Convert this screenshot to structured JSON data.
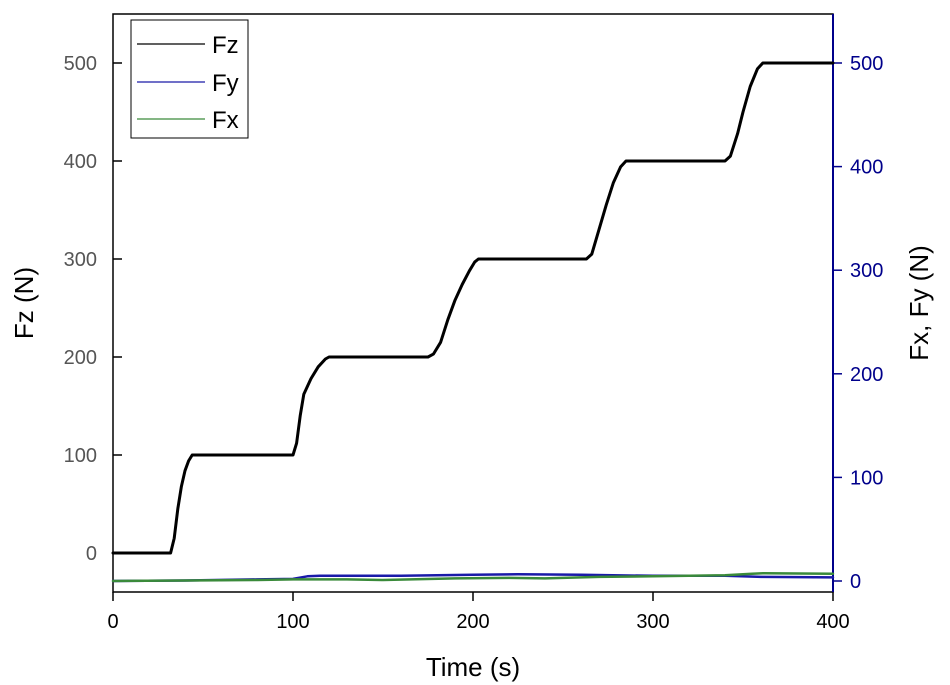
{
  "chart_data": {
    "type": "line",
    "title": "",
    "xlabel": "Time (s)",
    "ylabel_left": "Fz (N)",
    "ylabel_right": "Fx, Fy (N)",
    "xlim": [
      0,
      400
    ],
    "ylim_left": [
      -40,
      550
    ],
    "ylim_right": [
      -10,
      550
    ],
    "x_ticks": [
      0,
      100,
      200,
      300,
      400
    ],
    "y_left_ticks": [
      0,
      100,
      200,
      300,
      400,
      500
    ],
    "y_right_ticks": [
      0,
      100,
      200,
      300,
      400,
      500
    ],
    "grid": false,
    "legend_position": "top-left",
    "colors": {
      "left_axis": "#555555",
      "right_axis": "#00008b",
      "frame": "#000000"
    },
    "series": [
      {
        "name": "Fz",
        "axis": "left",
        "color": "#000000",
        "points": [
          [
            0,
            0
          ],
          [
            32,
            0
          ],
          [
            34,
            15
          ],
          [
            36,
            45
          ],
          [
            38,
            68
          ],
          [
            40,
            84
          ],
          [
            42,
            94
          ],
          [
            44,
            100
          ],
          [
            100,
            100
          ],
          [
            102,
            112
          ],
          [
            104,
            140
          ],
          [
            106,
            162
          ],
          [
            110,
            178
          ],
          [
            114,
            190
          ],
          [
            118,
            198
          ],
          [
            120,
            200
          ],
          [
            175,
            200
          ],
          [
            178,
            203
          ],
          [
            182,
            215
          ],
          [
            186,
            238
          ],
          [
            190,
            258
          ],
          [
            194,
            274
          ],
          [
            198,
            288
          ],
          [
            201,
            297
          ],
          [
            203,
            300
          ],
          [
            263,
            300
          ],
          [
            266,
            305
          ],
          [
            270,
            330
          ],
          [
            274,
            355
          ],
          [
            278,
            378
          ],
          [
            282,
            394
          ],
          [
            285,
            400
          ],
          [
            340,
            400
          ],
          [
            343,
            405
          ],
          [
            347,
            428
          ],
          [
            350,
            450
          ],
          [
            354,
            476
          ],
          [
            358,
            494
          ],
          [
            361,
            500
          ],
          [
            400,
            500
          ]
        ]
      },
      {
        "name": "Fy",
        "axis": "right",
        "color": "#1a1aa8",
        "points": [
          [
            0,
            0
          ],
          [
            40,
            0.5
          ],
          [
            80,
            1.5
          ],
          [
            100,
            2
          ],
          [
            108,
            4.5
          ],
          [
            115,
            5
          ],
          [
            160,
            5
          ],
          [
            200,
            6
          ],
          [
            225,
            6.5
          ],
          [
            260,
            6
          ],
          [
            300,
            5
          ],
          [
            340,
            5
          ],
          [
            360,
            4
          ],
          [
            400,
            3.5
          ]
        ]
      },
      {
        "name": "Fx",
        "axis": "right",
        "color": "#3a8a3a",
        "points": [
          [
            0,
            0
          ],
          [
            40,
            0.5
          ],
          [
            80,
            1
          ],
          [
            100,
            1.5
          ],
          [
            130,
            1.5
          ],
          [
            150,
            1
          ],
          [
            190,
            2.5
          ],
          [
            220,
            3
          ],
          [
            240,
            2.5
          ],
          [
            270,
            4
          ],
          [
            300,
            4.5
          ],
          [
            340,
            5.5
          ],
          [
            355,
            7
          ],
          [
            362,
            7.5
          ],
          [
            400,
            7
          ]
        ]
      }
    ]
  }
}
